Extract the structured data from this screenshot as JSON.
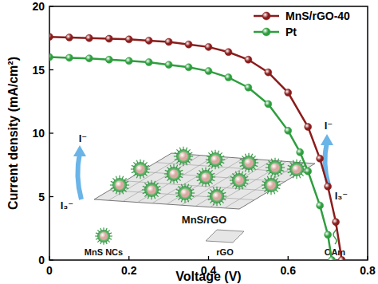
{
  "chart_data": {
    "type": "line",
    "x_label": "Voltage (V)",
    "y_label": "Current density (mA/cm²)",
    "xlim": [
      0,
      0.8
    ],
    "xticks": [
      0,
      0.2,
      0.4,
      0.6,
      0.8
    ],
    "ylim": [
      0,
      20
    ],
    "yticks": [
      0,
      5,
      10,
      15,
      20
    ],
    "legend": "upper right",
    "grid": false,
    "series": [
      {
        "name": "MnS/rGO-40",
        "color": "#8b1c1c",
        "marker": "sphere",
        "x": [
          0,
          0.05,
          0.1,
          0.15,
          0.2,
          0.25,
          0.3,
          0.35,
          0.4,
          0.45,
          0.5,
          0.55,
          0.6,
          0.65,
          0.68,
          0.7,
          0.72,
          0.735
        ],
        "values": [
          17.6,
          17.55,
          17.5,
          17.45,
          17.4,
          17.3,
          17.2,
          17.0,
          16.8,
          16.4,
          15.8,
          14.8,
          13.2,
          10.5,
          8.0,
          5.8,
          3.0,
          0
        ]
      },
      {
        "name": "Pt",
        "color": "#2e9e3e",
        "marker": "sphere",
        "x": [
          0,
          0.05,
          0.1,
          0.15,
          0.2,
          0.25,
          0.3,
          0.35,
          0.4,
          0.45,
          0.5,
          0.55,
          0.6,
          0.63,
          0.65,
          0.68,
          0.7,
          0.71
        ],
        "values": [
          16.0,
          15.95,
          15.9,
          15.8,
          15.7,
          15.6,
          15.4,
          15.2,
          14.9,
          14.4,
          13.6,
          12.3,
          10.2,
          8.5,
          7.0,
          4.3,
          2.0,
          0
        ]
      }
    ],
    "annotations": [
      "I⁻",
      "I₃⁻",
      "MnS/rGO",
      "I⁻",
      "I₃⁻",
      "MnS NCs",
      "rGO",
      "OAm"
    ]
  }
}
